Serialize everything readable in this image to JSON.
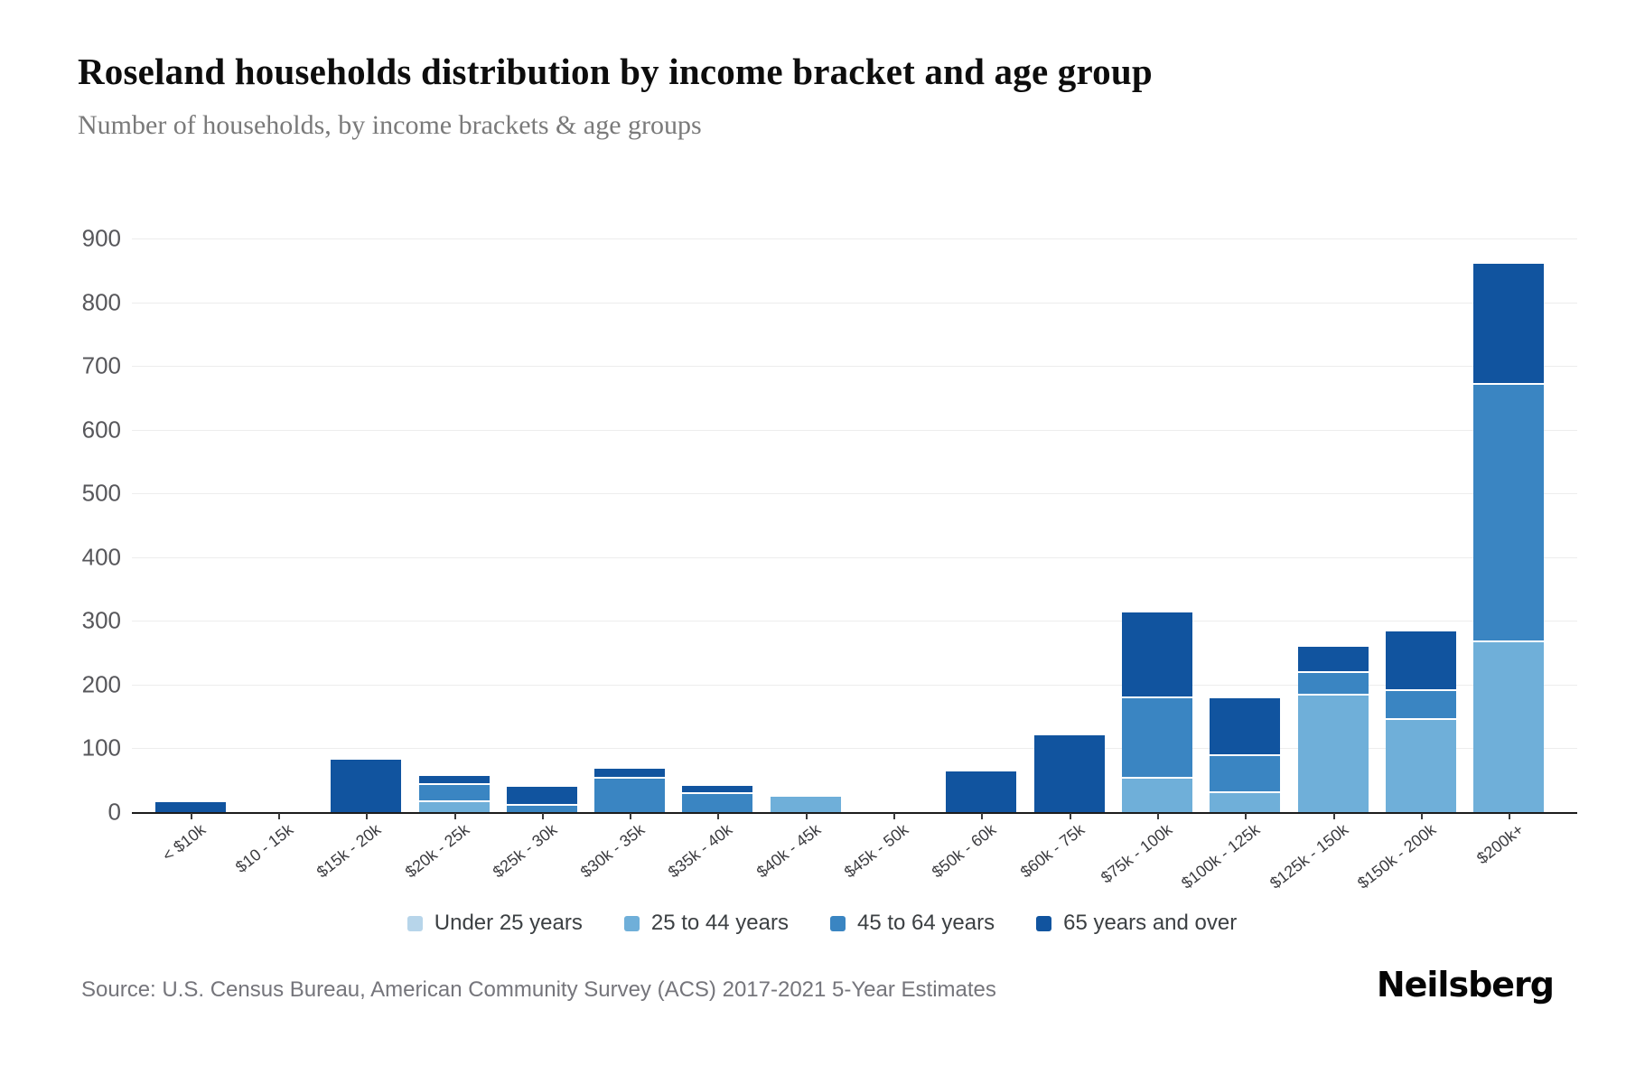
{
  "header": {
    "title": "Roseland households distribution by income bracket and age group",
    "subtitle": "Number of households, by income brackets & age groups"
  },
  "chart_data": {
    "type": "bar",
    "stacked": true,
    "title": "Roseland households distribution by income bracket and age group",
    "xlabel": "",
    "ylabel": "",
    "ylim": [
      0,
      900
    ],
    "ytick_step": 100,
    "grid": true,
    "legend_position": "bottom",
    "categories": [
      "< $10k",
      "$10 - 15k",
      "$15k - 20k",
      "$20k - 25k",
      "$25k - 30k",
      "$30k - 35k",
      "$35k - 40k",
      "$40k - 45k",
      "$45k - 50k",
      "$50k - 60k",
      "$60k - 75k",
      "$75k - 100k",
      "$100k - 125k",
      "$125k - 150k",
      "$150k - 200k",
      "$200k+"
    ],
    "series": [
      {
        "name": "Under 25 years",
        "color": "#b7d5ea",
        "values": [
          0,
          0,
          0,
          0,
          0,
          0,
          0,
          0,
          0,
          0,
          0,
          0,
          0,
          0,
          0,
          0
        ]
      },
      {
        "name": "25 to 44 years",
        "color": "#6fafd9",
        "values": [
          0,
          0,
          0,
          16,
          0,
          0,
          0,
          24,
          0,
          0,
          0,
          52,
          30,
          183,
          144,
          266
        ]
      },
      {
        "name": "45 to 64 years",
        "color": "#3a85c2",
        "values": [
          0,
          0,
          0,
          27,
          10,
          52,
          28,
          0,
          0,
          0,
          0,
          126,
          58,
          35,
          46,
          404
        ]
      },
      {
        "name": "65 years and over",
        "color": "#11549f",
        "values": [
          15,
          0,
          82,
          13,
          30,
          16,
          13,
          0,
          0,
          64,
          120,
          135,
          90,
          41,
          94,
          190
        ]
      }
    ]
  },
  "footer": {
    "source": "Source: U.S. Census Bureau, American Community Survey (ACS) 2017-2021 5-Year Estimates",
    "logo": "Neilsberg"
  }
}
